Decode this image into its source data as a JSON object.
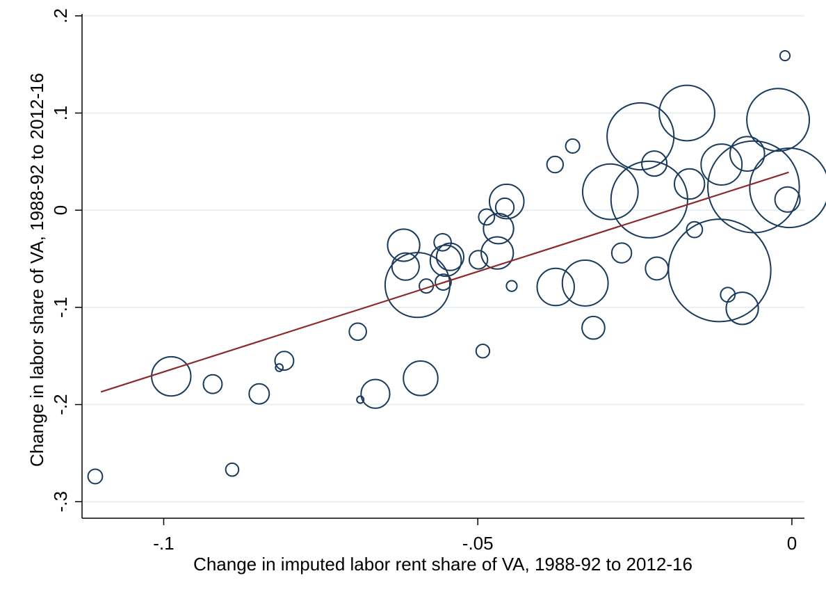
{
  "colors": {
    "bubble_stroke": "#1a3a5c",
    "fit_line": "#8b2a2a",
    "grid": "#e8eef2",
    "axis": "#000000"
  },
  "chart_data": {
    "type": "scatter",
    "xlabel": "Change in imputed labor rent share of VA, 1988-92 to 2012-16",
    "ylabel": "Change in labor share of VA, 1988-92 to 2012-16",
    "xlim": [
      -0.113,
      0.002
    ],
    "ylim": [
      -0.317,
      0.202
    ],
    "x_ticks": [
      {
        "value": -0.1,
        "label": "-.1"
      },
      {
        "value": -0.05,
        "label": "-.05"
      },
      {
        "value": 0,
        "label": "0"
      }
    ],
    "y_ticks": [
      {
        "value": 0.2,
        "label": ".2"
      },
      {
        "value": 0.1,
        "label": ".1"
      },
      {
        "value": 0,
        "label": "0"
      },
      {
        "value": -0.1,
        "label": "-.1"
      },
      {
        "value": -0.2,
        "label": "-.2"
      },
      {
        "value": -0.3,
        "label": "-.3"
      }
    ],
    "grid": true,
    "weighted_markers": true,
    "fit_line": {
      "x": [
        -0.11,
        -0.0005
      ],
      "y": [
        -0.187,
        0.039
      ]
    },
    "points": [
      {
        "x": -0.1109,
        "y": -0.274,
        "w": 1.5
      },
      {
        "x": -0.0988,
        "y": -0.171,
        "w": 11
      },
      {
        "x": -0.0922,
        "y": -0.179,
        "w": 2.5
      },
      {
        "x": -0.0891,
        "y": -0.267,
        "w": 1.2
      },
      {
        "x": -0.0848,
        "y": -0.189,
        "w": 2.9
      },
      {
        "x": -0.0816,
        "y": -0.162,
        "w": 0.4
      },
      {
        "x": -0.0808,
        "y": -0.155,
        "w": 2.5
      },
      {
        "x": -0.0691,
        "y": -0.125,
        "w": 2.1
      },
      {
        "x": -0.0687,
        "y": -0.195,
        "w": 0.35
      },
      {
        "x": -0.0663,
        "y": -0.189,
        "w": 5.9
      },
      {
        "x": -0.0618,
        "y": -0.036,
        "w": 7.4
      },
      {
        "x": -0.0615,
        "y": -0.058,
        "w": 5.3
      },
      {
        "x": -0.0596,
        "y": -0.077,
        "w": 30
      },
      {
        "x": -0.0591,
        "y": -0.173,
        "w": 8.5
      },
      {
        "x": -0.0582,
        "y": -0.078,
        "w": 1.4
      },
      {
        "x": -0.0556,
        "y": -0.033,
        "w": 2.1
      },
      {
        "x": -0.0555,
        "y": -0.074,
        "w": 1.8
      },
      {
        "x": -0.0551,
        "y": -0.052,
        "w": 6.9
      },
      {
        "x": -0.0544,
        "y": -0.048,
        "w": 5.3
      },
      {
        "x": -0.0499,
        "y": -0.051,
        "w": 2.4
      },
      {
        "x": -0.0492,
        "y": -0.145,
        "w": 1.3
      },
      {
        "x": -0.0486,
        "y": -0.007,
        "w": 1.8
      },
      {
        "x": -0.0469,
        "y": -0.044,
        "w": 7.4
      },
      {
        "x": -0.0467,
        "y": -0.019,
        "w": 6.5
      },
      {
        "x": -0.0457,
        "y": 0.003,
        "w": 2.4
      },
      {
        "x": -0.0454,
        "y": 0.009,
        "w": 8.5
      },
      {
        "x": -0.0446,
        "y": -0.078,
        "w": 0.8
      },
      {
        "x": -0.0377,
        "y": 0.047,
        "w": 1.9
      },
      {
        "x": -0.0376,
        "y": -0.079,
        "w": 9.9
      },
      {
        "x": -0.0349,
        "y": 0.066,
        "w": 1.4
      },
      {
        "x": -0.0329,
        "y": -0.075,
        "w": 15
      },
      {
        "x": -0.0316,
        "y": -0.121,
        "w": 3.7
      },
      {
        "x": -0.0289,
        "y": 0.019,
        "w": 22
      },
      {
        "x": -0.0271,
        "y": -0.044,
        "w": 2.8
      },
      {
        "x": -0.0241,
        "y": 0.076,
        "w": 32
      },
      {
        "x": -0.0227,
        "y": 0.011,
        "w": 42
      },
      {
        "x": -0.0219,
        "y": 0.048,
        "w": 4.5
      },
      {
        "x": -0.0215,
        "y": -0.06,
        "w": 3.7
      },
      {
        "x": -0.0167,
        "y": 0.1,
        "w": 22
      },
      {
        "x": -0.0163,
        "y": 0.027,
        "w": 6.5
      },
      {
        "x": -0.0155,
        "y": -0.02,
        "w": 1.8
      },
      {
        "x": -0.0115,
        "y": -0.062,
        "w": 75
      },
      {
        "x": -0.0112,
        "y": 0.047,
        "w": 12
      },
      {
        "x": -0.0102,
        "y": -0.087,
        "w": 1.5
      },
      {
        "x": -0.0079,
        "y": -0.101,
        "w": 7.4
      },
      {
        "x": -0.0071,
        "y": 0.058,
        "w": 8.5
      },
      {
        "x": -0.0061,
        "y": 0.024,
        "w": 60
      },
      {
        "x": -0.0022,
        "y": 0.093,
        "w": 28
      },
      {
        "x": -0.0004,
        "y": 0.023,
        "w": 45
      },
      {
        "x": -0.0007,
        "y": 0.011,
        "w": 4.5
      },
      {
        "x": -0.0011,
        "y": 0.159,
        "w": 0.7
      }
    ]
  }
}
